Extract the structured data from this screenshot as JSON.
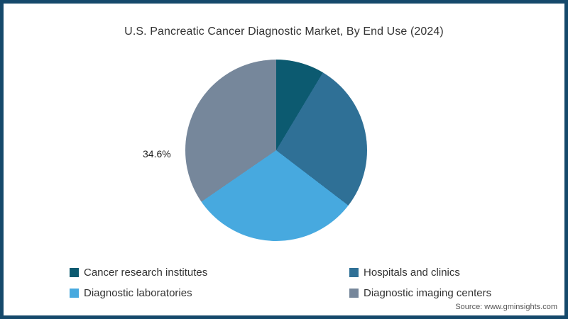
{
  "header": {
    "title": "U.S. Pancreatic Cancer Diagnostic Market, By End Use (2024)"
  },
  "chart_data": {
    "type": "pie",
    "title": "U.S. Pancreatic Cancer Diagnostic Market, By End Use (2024)",
    "categories": [
      "Cancer research institutes",
      "Hospitals and clinics",
      "Diagnostic laboratories",
      "Diagnostic imaging centers"
    ],
    "values": [
      8.6,
      26.8,
      30.0,
      34.6
    ],
    "colors": [
      "#0C5A70",
      "#2F7096",
      "#47A9DF",
      "#76879B"
    ],
    "start_angle_deg": 0,
    "direction": "clockwise",
    "data_labels": [
      {
        "category": "Diagnostic imaging centers",
        "text": "34.6%",
        "position": "left-of-pie"
      }
    ],
    "legend_position": "bottom",
    "legend_columns": 2
  },
  "annotations": {
    "slice_label": "34.6%"
  },
  "legend": {
    "items": [
      {
        "label": "Cancer research institutes",
        "color": "#0C5A70"
      },
      {
        "label": "Hospitals and clinics",
        "color": "#2F7096"
      },
      {
        "label": "Diagnostic laboratories",
        "color": "#47A9DF"
      },
      {
        "label": "Diagnostic imaging centers",
        "color": "#76879B"
      }
    ]
  },
  "footer": {
    "source": "Source: www.gminsights.com"
  },
  "theme": {
    "frame_border_color": "#15496B",
    "background_color": "#FFFFFF",
    "text_color": "#333333"
  }
}
